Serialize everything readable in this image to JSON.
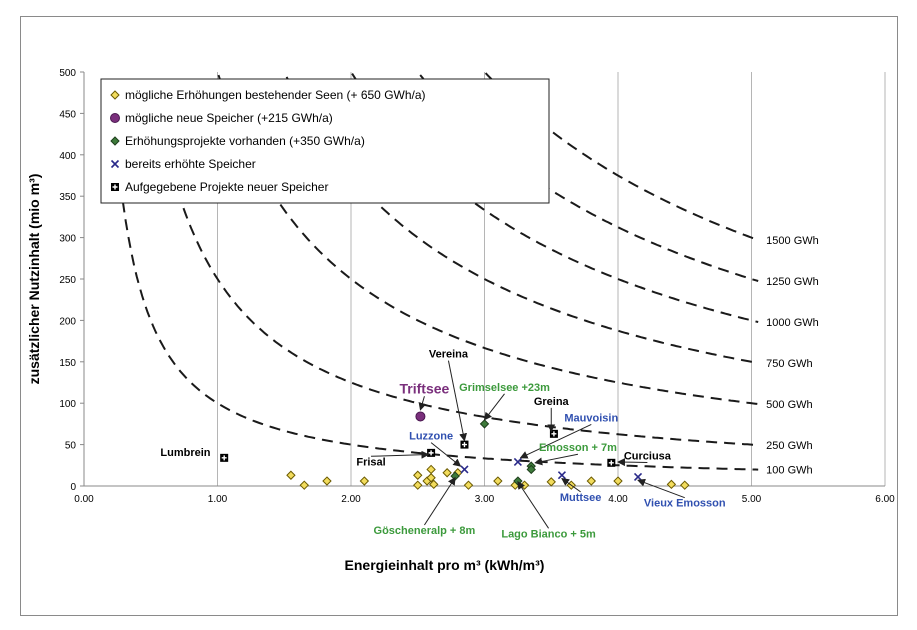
{
  "chart_data": {
    "type": "scatter",
    "xlabel": "Energieinhalt pro m³ (kWh/m³)",
    "ylabel": "zusätzlicher Nutzinhalt (mio m³)",
    "xlim": [
      0,
      6
    ],
    "ylim": [
      0,
      500
    ],
    "x_ticks": [
      "0.00",
      "1.00",
      "2.00",
      "3.00",
      "4.00",
      "5.00",
      "6.00"
    ],
    "y_ticks": [
      "0",
      "50",
      "100",
      "150",
      "200",
      "250",
      "300",
      "350",
      "400",
      "450",
      "500"
    ],
    "grid": "vertical",
    "legend_position": "top-left",
    "series": [
      {
        "name": "mögliche Erhöhungen bestehender Seen (+ 650 GWh/a)",
        "marker": "diamond",
        "fill": "#f2dc5d",
        "stroke": "#6b5a00",
        "points": [
          [
            1.55,
            13
          ],
          [
            1.65,
            1
          ],
          [
            1.82,
            6
          ],
          [
            2.1,
            6
          ],
          [
            2.5,
            13
          ],
          [
            2.5,
            1
          ],
          [
            2.57,
            6
          ],
          [
            2.6,
            20
          ],
          [
            2.6,
            10
          ],
          [
            2.62,
            2
          ],
          [
            2.72,
            16
          ],
          [
            2.8,
            16
          ],
          [
            2.88,
            1
          ],
          [
            3.1,
            6
          ],
          [
            3.23,
            1
          ],
          [
            3.3,
            1
          ],
          [
            3.5,
            5
          ],
          [
            3.65,
            1
          ],
          [
            3.8,
            6
          ],
          [
            4.0,
            6
          ],
          [
            4.4,
            2
          ],
          [
            4.5,
            1
          ]
        ]
      },
      {
        "name": "mögliche neue Speicher (+215 GWh/a)",
        "marker": "circle",
        "fill": "#7a2f7c",
        "stroke": "#4a1850",
        "points": [
          [
            2.52,
            84
          ]
        ]
      },
      {
        "name": "Erhöhungsprojekte vorhanden (+350 GWh/a)",
        "marker": "diamond",
        "fill": "#3d7a3a",
        "stroke": "#1e3e1c",
        "points": [
          [
            3.0,
            75
          ],
          [
            2.78,
            12
          ],
          [
            3.25,
            6
          ],
          [
            3.35,
            24
          ],
          [
            3.35,
            20
          ]
        ]
      },
      {
        "name": "bereits erhöhte Speicher",
        "marker": "x",
        "fill": "none",
        "stroke": "#2a2a8a",
        "points": [
          [
            2.85,
            20
          ],
          [
            3.25,
            29
          ],
          [
            3.58,
            13
          ],
          [
            4.15,
            11
          ]
        ]
      },
      {
        "name": "Aufgegebene Projekte neuer Speicher",
        "marker": "boxplus",
        "fill": "#ffffff",
        "stroke": "#000000",
        "points": [
          [
            1.05,
            34
          ],
          [
            2.6,
            40
          ],
          [
            2.85,
            50
          ],
          [
            3.52,
            63
          ],
          [
            3.95,
            28
          ]
        ]
      }
    ],
    "energy_curves": [
      {
        "label": "1500 GWh",
        "gwh": 1500
      },
      {
        "label": "1250 GWh",
        "gwh": 1250
      },
      {
        "label": "1000 GWh",
        "gwh": 1000
      },
      {
        "label": "750 GWh",
        "gwh": 750
      },
      {
        "label": "500 GWh",
        "gwh": 500
      },
      {
        "label": "250 GWh",
        "gwh": 250
      },
      {
        "label": "100 GWh",
        "gwh": 100
      }
    ],
    "annotations": [
      {
        "text": "Triftsee",
        "color": "#7a2f7c",
        "size": 14,
        "x": 2.55,
        "y": 112,
        "ax": 2.52,
        "ay": 92
      },
      {
        "text": "Vereina",
        "color": "#000000",
        "size": 11,
        "x": 2.73,
        "y": 155,
        "ax": 2.85,
        "ay": 55
      },
      {
        "text": "Grimselsee +23m",
        "color": "#3c9a3c",
        "size": 11,
        "x": 3.15,
        "y": 115,
        "ax": 3.0,
        "ay": 80
      },
      {
        "text": "Greina",
        "color": "#000000",
        "size": 11,
        "x": 3.5,
        "y": 98,
        "ax": 3.5,
        "ay": 66
      },
      {
        "text": "Mauvoisin",
        "color": "#3050b0",
        "size": 11,
        "x": 3.8,
        "y": 78,
        "ax": 3.27,
        "ay": 34
      },
      {
        "text": "Luzzone",
        "color": "#3050b0",
        "size": 11,
        "x": 2.6,
        "y": 56,
        "ax": 2.82,
        "ay": 24
      },
      {
        "text": "Emosson + 7m",
        "color": "#3c9a3c",
        "size": 11,
        "x": 3.7,
        "y": 42,
        "ax": 3.38,
        "ay": 28
      },
      {
        "text": "Lumbrein",
        "color": "#000000",
        "size": 11,
        "x": 0.76,
        "y": 36,
        "ax": null,
        "ay": null
      },
      {
        "text": "Frisal",
        "color": "#000000",
        "size": 11,
        "x": 2.15,
        "y": 25,
        "ax": 2.58,
        "ay": 38
      },
      {
        "text": "Curciusa",
        "color": "#000000",
        "size": 11,
        "x": 4.22,
        "y": 32,
        "ax": 4.0,
        "ay": 29
      },
      {
        "text": "Muttsee",
        "color": "#3050b0",
        "size": 11,
        "x": 3.72,
        "y": -18,
        "ax": 3.58,
        "ay": 9
      },
      {
        "text": "Vieux Emosson",
        "color": "#3050b0",
        "size": 11,
        "x": 4.5,
        "y": -25,
        "ax": 4.15,
        "ay": 7
      },
      {
        "text": "Göscheneralp + 8m",
        "color": "#3c9a3c",
        "size": 11,
        "x": 2.55,
        "y": -58,
        "ax": 2.78,
        "ay": 10
      },
      {
        "text": "Lago Bianco + 5m",
        "color": "#3c9a3c",
        "size": 11,
        "x": 3.48,
        "y": -62,
        "ax": 3.25,
        "ay": 5
      }
    ]
  }
}
